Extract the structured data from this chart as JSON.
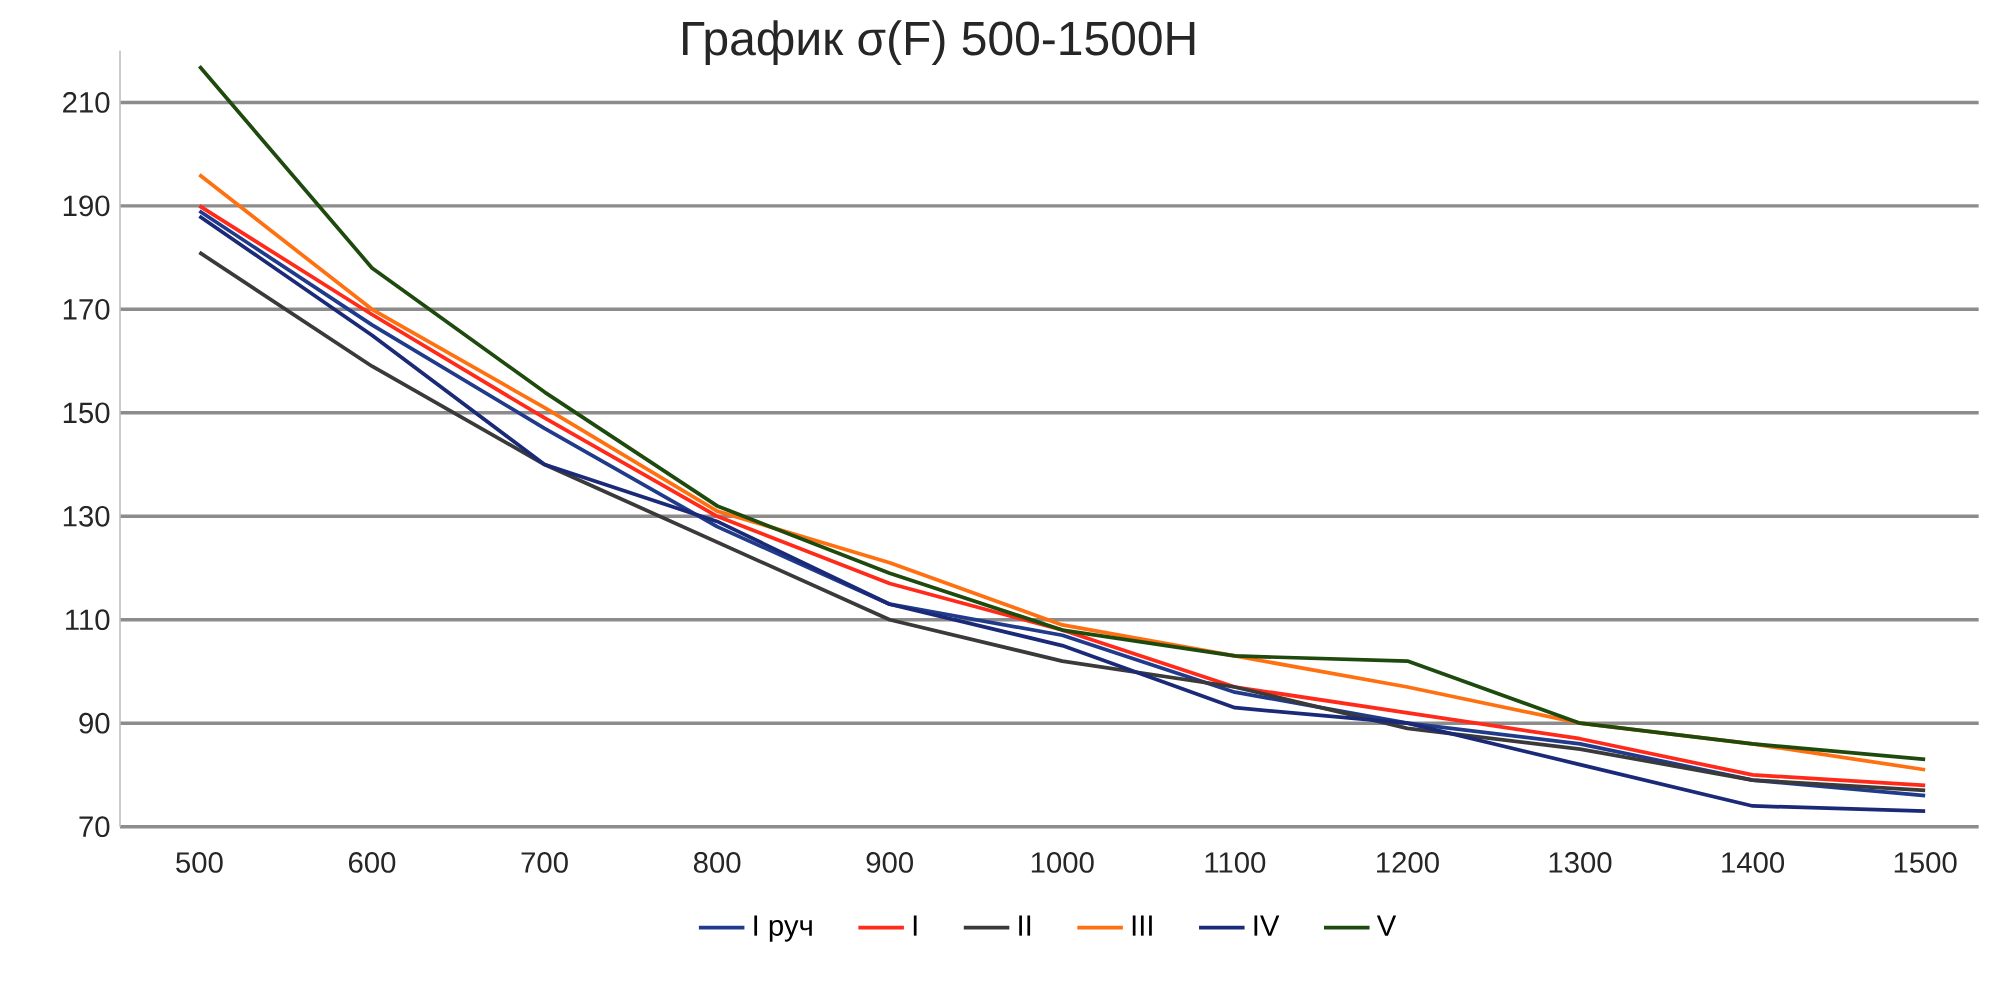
{
  "chart_data": {
    "type": "line",
    "title": "График σ(F) 500-1500Н",
    "categories": [
      "500",
      "600",
      "700",
      "800",
      "900",
      "1000",
      "1100",
      "1200",
      "1300",
      "1400",
      "1500"
    ],
    "series": [
      {
        "name": "I руч",
        "color": "#203a8c",
        "values": [
          189,
          167,
          147,
          128,
          113,
          107,
          96,
          90,
          86,
          79,
          76
        ]
      },
      {
        "name": "I",
        "color": "#ff2a1a",
        "values": [
          190,
          169,
          149,
          130,
          117,
          108,
          97,
          92,
          87,
          80,
          78
        ]
      },
      {
        "name": "II",
        "color": "#3a3a3a",
        "values": [
          181,
          159,
          140,
          125,
          110,
          102,
          97,
          89,
          85,
          79,
          77
        ]
      },
      {
        "name": "III",
        "color": "#ff7010",
        "values": [
          196,
          170,
          151,
          131,
          121,
          109,
          103,
          97,
          90,
          86,
          81
        ]
      },
      {
        "name": "IV",
        "color": "#1b2a78",
        "values": [
          188,
          165,
          140,
          129,
          113,
          105,
          93,
          90,
          82,
          74,
          73
        ]
      },
      {
        "name": "V",
        "color": "#1e4a0e",
        "values": [
          217,
          178,
          154,
          132,
          119,
          108,
          103,
          102,
          90,
          86,
          83
        ]
      }
    ],
    "ylim": [
      70,
      220
    ],
    "yticks": [
      70,
      90,
      110,
      130,
      150,
      170,
      190,
      210
    ],
    "grid": "y",
    "legend": "bottom"
  }
}
